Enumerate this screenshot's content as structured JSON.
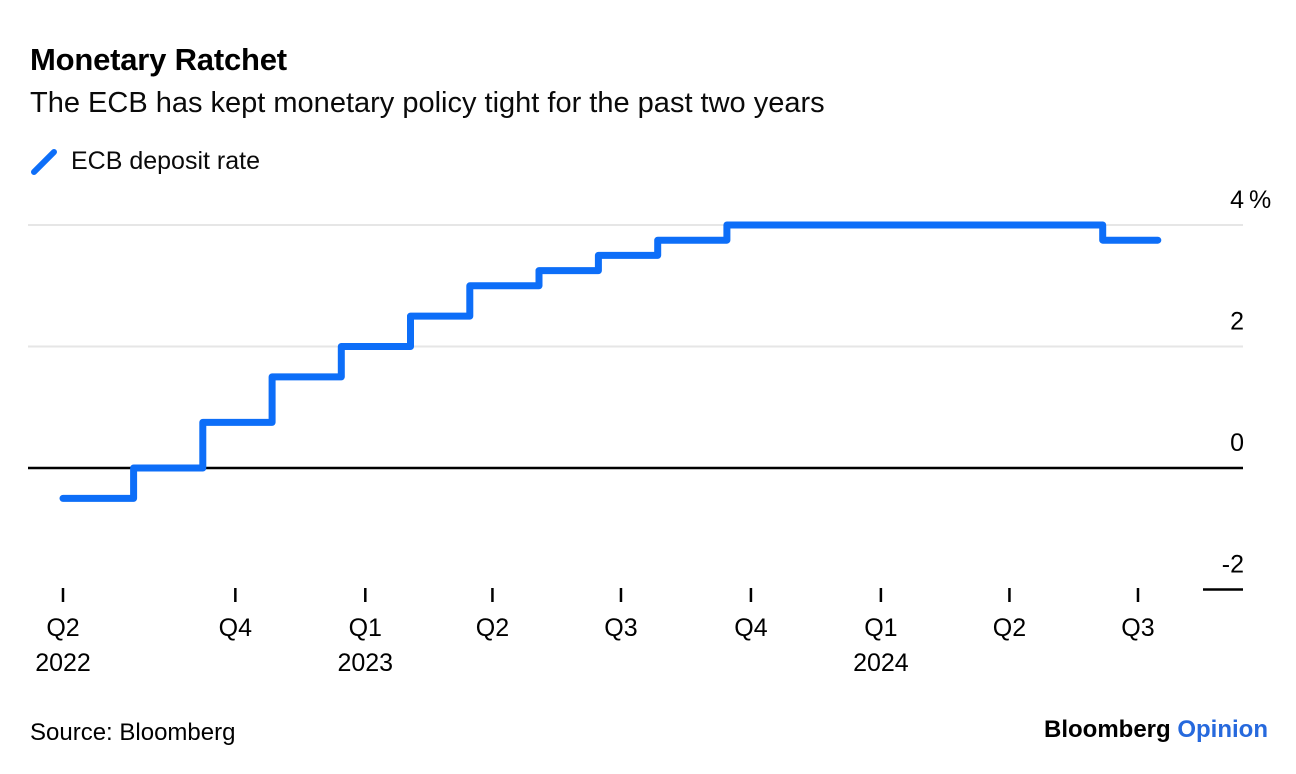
{
  "header": {
    "title": "Monetary Ratchet",
    "subtitle": "The ECB has kept monetary policy tight for the past two years"
  },
  "legend": {
    "label": "ECB deposit rate"
  },
  "footer": {
    "source": "Source: Bloomberg",
    "logo_black": "Bloomberg",
    "logo_accent": "Opinion"
  },
  "colors": {
    "line_blue": "#0d6ef8",
    "opinion_blue": "#2669dd",
    "gridline": "#e6e6e6",
    "axis_black": "#000000",
    "text_black": "#000000"
  },
  "chart_data": {
    "type": "line",
    "subtype": "step",
    "series_name": "ECB deposit rate",
    "unit": "%",
    "grid": "horizontal",
    "legend_position": "top-left",
    "points": [
      {
        "date": "2022-06-01",
        "rate": -0.5
      },
      {
        "date": "2022-07-21",
        "rate": 0.0
      },
      {
        "date": "2022-09-08",
        "rate": 0.75
      },
      {
        "date": "2022-10-27",
        "rate": 1.5
      },
      {
        "date": "2022-12-15",
        "rate": 2.0
      },
      {
        "date": "2023-02-02",
        "rate": 2.5
      },
      {
        "date": "2023-03-16",
        "rate": 3.0
      },
      {
        "date": "2023-05-04",
        "rate": 3.25
      },
      {
        "date": "2023-06-15",
        "rate": 3.5
      },
      {
        "date": "2023-07-27",
        "rate": 3.75
      },
      {
        "date": "2023-09-14",
        "rate": 4.0
      },
      {
        "date": "2024-06-06",
        "rate": 3.75
      }
    ],
    "end_date": "2024-07-15",
    "end_rate": 3.75,
    "y_axis": {
      "range": [
        -2,
        4
      ],
      "ticks": [
        {
          "value": 4,
          "label": "4",
          "suffix": "%",
          "line": "full"
        },
        {
          "value": 2,
          "label": "2",
          "line": "full"
        },
        {
          "value": 0,
          "label": "0",
          "line": "axis"
        },
        {
          "value": -2,
          "label": "-2",
          "line": "stub"
        }
      ]
    },
    "x_axis": {
      "start_date": "2022-06-01",
      "ticks": [
        {
          "label": "Q2",
          "year": "2022",
          "date": "2022-06-01"
        },
        {
          "label": "Q4",
          "date": "2022-10-01"
        },
        {
          "label": "Q1",
          "year": "2023",
          "date": "2023-01-01"
        },
        {
          "label": "Q2",
          "date": "2023-04-01"
        },
        {
          "label": "Q3",
          "date": "2023-07-01"
        },
        {
          "label": "Q4",
          "date": "2023-10-01"
        },
        {
          "label": "Q1",
          "year": "2024",
          "date": "2024-01-01"
        },
        {
          "label": "Q2",
          "date": "2024-04-01"
        },
        {
          "label": "Q3",
          "date": "2024-07-01"
        }
      ]
    }
  }
}
